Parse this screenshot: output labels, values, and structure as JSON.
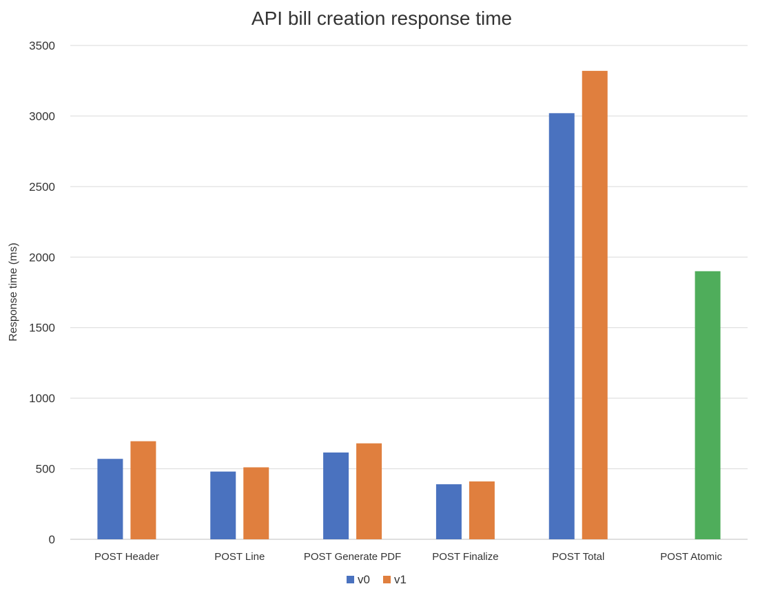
{
  "chart_data": {
    "type": "bar",
    "title": "API bill creation response time",
    "xlabel": "",
    "ylabel": "Response time (ms)",
    "ylim": [
      0,
      3500
    ],
    "yticks": [
      0,
      500,
      1000,
      1500,
      2000,
      2500,
      3000,
      3500
    ],
    "grid": true,
    "legend_position": "bottom",
    "categories": [
      "POST Header",
      "POST Line",
      "POST Generate PDF",
      "POST Finalize",
      "POST Total",
      "POST Atomic"
    ],
    "series": [
      {
        "name": "v0",
        "color": "#4A72BF",
        "values": [
          570,
          480,
          615,
          390,
          3020,
          null
        ]
      },
      {
        "name": "v1",
        "color": "#E07F3E",
        "values": [
          695,
          510,
          680,
          410,
          3320,
          null
        ]
      }
    ],
    "extra_bars": [
      {
        "category": "POST Atomic",
        "value": 1900,
        "color": "#4FAD5B"
      }
    ]
  }
}
